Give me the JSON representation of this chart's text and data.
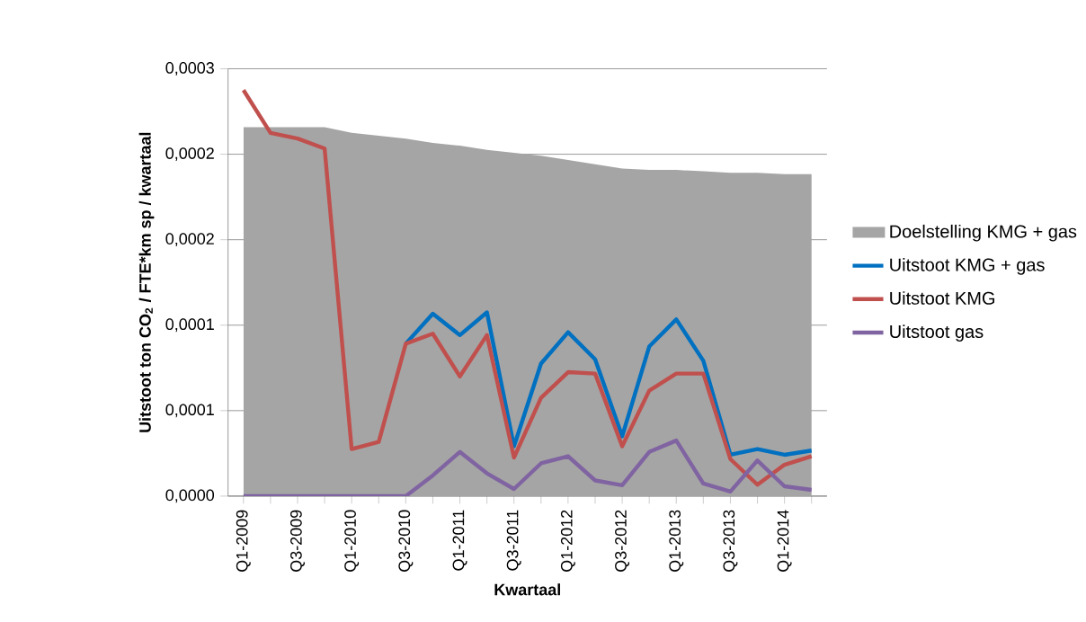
{
  "chart_data": {
    "type": "line",
    "xlabel": "Kwartaal",
    "ylabel": "Uitstoot ton CO$_{2}$ / FTE*km sp / kwartaal",
    "categories": [
      "Q1-2009",
      null,
      "Q3-2009",
      null,
      "Q1-2010",
      null,
      "Q3-2010",
      null,
      "Q1-2011",
      null,
      "Q3-2011",
      null,
      "Q1-2012",
      null,
      "Q3-2012",
      null,
      "Q1-2013",
      null,
      "Q3-2013",
      null,
      "Q1-2014",
      null
    ],
    "series": [
      {
        "name": "Doelstelling KMG + gas",
        "type": "area",
        "color": "#a5a5a5",
        "values": [
          0.000259,
          0.000259,
          0.000259,
          0.000259,
          0.000255,
          0.000253,
          0.000251,
          0.000248,
          0.000246,
          0.000243,
          0.000241,
          0.000239,
          0.000236,
          0.000233,
          0.00023,
          0.000229,
          0.000229,
          0.000228,
          0.000227,
          0.000227,
          0.000226,
          0.000226
        ]
      },
      {
        "name": "Uitstoot KMG + gas",
        "color": "#0070c0",
        "values": [
          null,
          null,
          null,
          null,
          null,
          null,
          0.000107,
          0.000128,
          0.000113,
          0.000129,
          3.5e-05,
          9.3e-05,
          0.000115,
          9.6e-05,
          4.2e-05,
          0.000105,
          0.000124,
          9.5e-05,
          2.9e-05,
          3.3e-05,
          2.9e-05,
          3.2e-05
        ]
      },
      {
        "name": "Uitstoot KMG",
        "color": "#c0504d",
        "values": [
          0.000285,
          0.000255,
          0.000251,
          0.000244,
          3.3e-05,
          3.8e-05,
          0.000107,
          0.000114,
          8.4e-05,
          0.000113,
          2.7e-05,
          6.9e-05,
          8.7e-05,
          8.6e-05,
          3.5e-05,
          7.4e-05,
          8.6e-05,
          8.6e-05,
          2.6e-05,
          8e-06,
          2.2e-05,
          2.8e-05
        ]
      },
      {
        "name": "Uitstoot gas",
        "color": "#8064a2",
        "values": [
          0,
          0,
          0,
          0,
          0,
          0,
          0,
          1.45e-05,
          3.1e-05,
          1.6e-05,
          5e-06,
          2.3e-05,
          2.8e-05,
          1.1e-05,
          7.6e-06,
          3.1e-05,
          3.9e-05,
          8.8e-06,
          3.2e-06,
          2.5e-05,
          6.9e-06,
          4.4e-06
        ]
      }
    ],
    "ylim": [
      0,
      0.0003
    ],
    "yticks": [
      {
        "value": 0,
        "label": "0,0000"
      },
      {
        "value": 6e-05,
        "label": "0,0001"
      },
      {
        "value": 0.00012,
        "label": "0,0001"
      },
      {
        "value": 0.00018,
        "label": "0,0002"
      },
      {
        "value": 0.00024,
        "label": "0,0002"
      },
      {
        "value": 0.0003,
        "label": "0,0003"
      }
    ],
    "grid": "y",
    "legend": "right",
    "marker": "none",
    "line_style": "solid"
  }
}
